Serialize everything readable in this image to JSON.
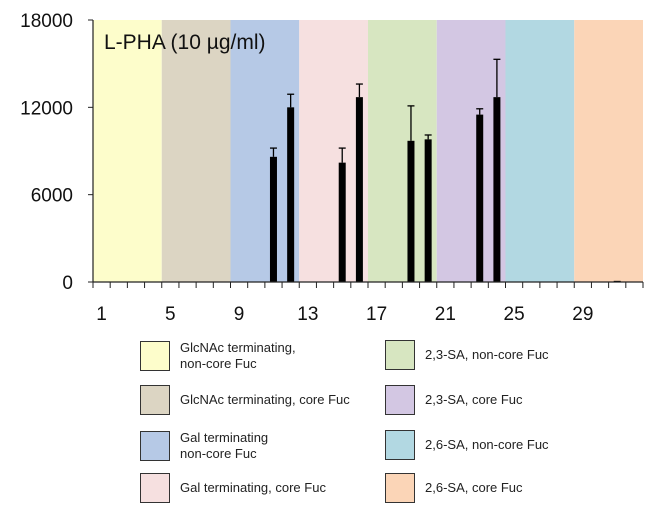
{
  "chart_data": {
    "type": "bar",
    "title": "L-PHA (10 µg/ml)",
    "xlabel": "",
    "ylabel": "",
    "xlim": [
      0,
      32
    ],
    "ylim": [
      0,
      18000
    ],
    "yticks": [
      0,
      6000,
      12000,
      18000
    ],
    "xticks": [
      1,
      5,
      9,
      13,
      17,
      21,
      25,
      29
    ],
    "ytick_labels": [
      "0",
      "6000",
      "12000",
      "18000"
    ],
    "xtick_labels": [
      "1",
      "5",
      "9",
      "13",
      "17",
      "21",
      "25",
      "29"
    ],
    "bars": [
      {
        "x": 11,
        "value": 8600,
        "error": 600
      },
      {
        "x": 12,
        "value": 12000,
        "error": 900
      },
      {
        "x": 15,
        "value": 8200,
        "error": 1000
      },
      {
        "x": 16,
        "value": 12700,
        "error": 900
      },
      {
        "x": 19,
        "value": 9700,
        "error": 2400
      },
      {
        "x": 20,
        "value": 9800,
        "error": 300
      },
      {
        "x": 23,
        "value": 11500,
        "error": 400
      },
      {
        "x": 24,
        "value": 12700,
        "error": 2600
      },
      {
        "x": 31,
        "value": 80,
        "error": 0
      }
    ],
    "regions": [
      {
        "label": "GlcNAc terminating,\nnon-core Fuc",
        "color": "#fdfdcb",
        "x_start": 0,
        "x_end": 4
      },
      {
        "label": "GlcNAc terminating, core Fuc",
        "color": "#dcd5c3",
        "x_start": 4,
        "x_end": 8
      },
      {
        "label": "Gal terminating\nnon-core Fuc",
        "color": "#b6c9e6",
        "x_start": 8,
        "x_end": 12
      },
      {
        "label": "Gal terminating, core Fuc",
        "color": "#f6e0e0",
        "x_start": 12,
        "x_end": 16
      },
      {
        "label": "2,3-SA, non-core Fuc",
        "color": "#d7e6c1",
        "x_start": 16,
        "x_end": 20
      },
      {
        "label": "2,3-SA, core Fuc",
        "color": "#d3c7e3",
        "x_start": 20,
        "x_end": 24
      },
      {
        "label": "2,6-SA, non-core Fuc",
        "color": "#b2d8e2",
        "x_start": 24,
        "x_end": 28
      },
      {
        "label": "2,6-SA, core Fuc",
        "color": "#fbd5b7",
        "x_start": 28,
        "x_end": 32
      }
    ],
    "legend_order": [
      0,
      4,
      1,
      5,
      2,
      6,
      3,
      7
    ]
  }
}
